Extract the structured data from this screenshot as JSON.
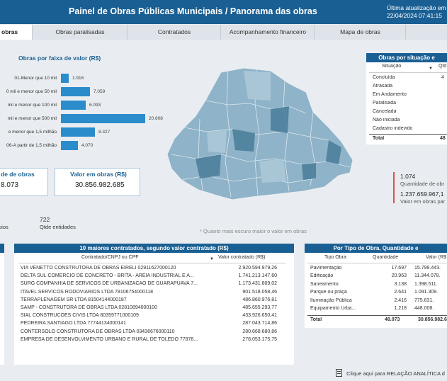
{
  "header": {
    "title": "Painel de Obras Públicas Municipais / Panorama das obras",
    "updated_label": "Última atualização em",
    "updated_value": "22/04/2024 07:41:15",
    "bg_color": "#1a5f93"
  },
  "tabs": [
    "obras",
    "Obras paralisadas",
    "Contratados",
    "Acompanhamento financeiro",
    "Mapa de obras"
  ],
  "faixa_valor": {
    "title": "Obras por faixa de valor (R$)",
    "chart_data": {
      "type": "bar",
      "categories": [
        "01-Menor que 10 mil",
        "0 mil e menor que 50 mil",
        "mil e menor que 100 mil",
        "mil e menor que 500 mil",
        "e menor que 1,5 milhão",
        "06-A partir de 1,5 milhão"
      ],
      "values": [
        1916,
        7059,
        6093,
        20608,
        8327,
        4070
      ],
      "labels": [
        "1.916",
        "7.059",
        "6.093",
        "20.608",
        "8.327",
        "4.070"
      ]
    }
  },
  "kpis": {
    "qtd_label": "de de obras",
    "qtd_value": "8.073",
    "valor_label": "Valor em obras (R$)",
    "valor_value": "30.856.982.685",
    "municipios_label": "pios",
    "entidades_value": "722",
    "entidades_label": "Qtde entidades"
  },
  "map": {
    "note": "* Quanto mais escuro maior o valor em obras"
  },
  "situacao": {
    "title": "Obras por situação e",
    "col_situacao": "Situação",
    "col_qtd": "Qtd",
    "rows": [
      {
        "situacao": "Concluída",
        "qtd": "4"
      },
      {
        "situacao": "Atrasada",
        "qtd": ""
      },
      {
        "situacao": "Em Andamento",
        "qtd": ""
      },
      {
        "situacao": "Paralisada",
        "qtd": ""
      },
      {
        "situacao": "Cancelada",
        "qtd": ""
      },
      {
        "situacao": "Não iniciada",
        "qtd": ""
      },
      {
        "situacao": "Cadastro indevido",
        "qtd": ""
      }
    ],
    "total_label": "Total",
    "total_value": "48"
  },
  "side_kpi": {
    "v1": "1.074",
    "l1": "Quantidade de obr",
    "v2": "1.237.659.967,1",
    "l2": "Valor em obras par"
  },
  "contratados": {
    "title": "10 maiores contratados, segundo valor contratado (R$)",
    "col_name": "Contratado/CNPJ ou CPF",
    "col_value": "Valor contratado (R$)",
    "rows": [
      {
        "name": "VIA VENETTO CONSTRUTORA DE OBRAS EIRELI 02911627000120",
        "value": "2.920.594.979,26"
      },
      {
        "name": "DELTA SUL COMERCIO DE CONCRETO - BRITA - AREIA INDUSTRIAL E A...",
        "value": "1.741.213.147,60"
      },
      {
        "name": "SURG COMPANHIA DE SERVICOS DE URBANIZACAO DE GUARAPUAVA 7...",
        "value": "1.173.431.809,02"
      },
      {
        "name": "ITAVEL SERVICOS RODOVIARIOS LTDA 78106754000118",
        "value": "901.518.058,46"
      },
      {
        "name": "TERRAPLENAGEM SR LTDA 81504144000187",
        "value": "486.860.976,81"
      },
      {
        "name": "SAMP - CONSTRUTORA DE OBRAS LTDA 02810894000100",
        "value": "485.655.293,77"
      },
      {
        "name": "SIAL CONSTRUCOES CIVIS LTDA 80359771000109",
        "value": "433.926.650,41"
      },
      {
        "name": "PEDREIRA SANTIAGO LTDA 77744134000141",
        "value": "287.043.714,86"
      },
      {
        "name": "CONTERSOLO CONSTRUTORA DE OBRAS LTDA 03436676000110",
        "value": "280.668.680,86"
      },
      {
        "name": "EMPRESA DE DESENVOLVIMENTO URBANO E RURAL DE TOLEDO 77878...",
        "value": "278.053.175,75"
      }
    ]
  },
  "tipo_obra": {
    "title": "Por Tipo de Obra, Quantidade e",
    "col_tipo": "Tipo Obra",
    "col_qtd": "Quantidade",
    "col_valor": "Valor (R$",
    "rows": [
      {
        "tipo": "Pavimentação",
        "qtd": "17.697",
        "valor": "15.799.443."
      },
      {
        "tipo": "Edificação",
        "qtd": "20.963",
        "valor": "11.344.078."
      },
      {
        "tipo": "Saneamento",
        "qtd": "3.138",
        "valor": "1.398.511."
      },
      {
        "tipo": "Parque ou praça",
        "qtd": "2.641",
        "valor": "1.091.309."
      },
      {
        "tipo": "Iluminação Pública",
        "qtd": "2.416",
        "valor": "775.631."
      },
      {
        "tipo": "Equipamento Urba...",
        "qtd": "1.218",
        "valor": "448.008."
      }
    ],
    "total_label": "Total",
    "total_qtd": "48.073",
    "total_valor": "30.856.982.6"
  },
  "footer_link": "Clique aqui para RELAÇÃO ANALÍTICA d"
}
